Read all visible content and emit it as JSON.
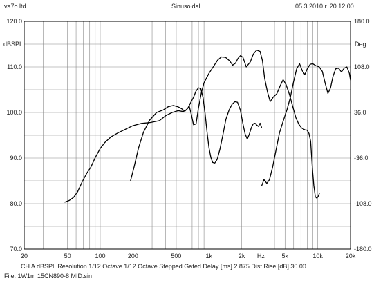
{
  "header": {
    "left": "va7o.ltd",
    "center": "Sinusoidal",
    "right": "05.3.2010 г. 20.12.00"
  },
  "footer": {
    "line1": "CH A   dBSPL   Resolution 1/12 Octave    1/12 Octave   Stepped    Gated    Delay [ms] 2.875    Dist Rise [dB] 30.00",
    "line2": "File: 1W1m 15CN890-8 MID.sin"
  },
  "chart_data": {
    "type": "line",
    "x_scale": "log",
    "xlim": [
      20,
      20000
    ],
    "ylim": [
      70,
      120
    ],
    "y2lim": [
      -180,
      180
    ],
    "ylabel": "dBSPL",
    "y2label": "Deg",
    "grid": true,
    "x_ticks": [
      {
        "v": 20,
        "t": "20"
      },
      {
        "v": 50,
        "t": "50"
      },
      {
        "v": 100,
        "t": "100"
      },
      {
        "v": 200,
        "t": "200"
      },
      {
        "v": 500,
        "t": "500"
      },
      {
        "v": 1000,
        "t": "1k"
      },
      {
        "v": 2000,
        "t": "2k"
      },
      {
        "v": 3000,
        "t": "Hz"
      },
      {
        "v": 5000,
        "t": "5k"
      },
      {
        "v": 10000,
        "t": "10k"
      },
      {
        "v": 20000,
        "t": "20k"
      }
    ],
    "y_ticks": [
      {
        "v": 120,
        "t": "120.0"
      },
      {
        "v": 110,
        "t": "110.0"
      },
      {
        "v": 100,
        "t": "100.0"
      },
      {
        "v": 90,
        "t": "90.0"
      },
      {
        "v": 80,
        "t": "80.0"
      },
      {
        "v": 70,
        "t": "70.0"
      }
    ],
    "y2_ticks": [
      {
        "v": 180,
        "t": "180.0"
      },
      {
        "v": 108,
        "t": "108.0"
      },
      {
        "v": 36,
        "t": "36.0"
      },
      {
        "v": -36,
        "t": "-36.0"
      },
      {
        "v": -108,
        "t": "-108.0"
      },
      {
        "v": -180,
        "t": "-180.0"
      }
    ],
    "series": [
      {
        "axis": "left",
        "color": "#000000",
        "points": [
          [
            47,
            80.3
          ],
          [
            52,
            80.7
          ],
          [
            57,
            81.4
          ],
          [
            62,
            82.6
          ],
          [
            68,
            84.7
          ],
          [
            75,
            86.6
          ],
          [
            82,
            88.0
          ],
          [
            90,
            90.1
          ],
          [
            100,
            92.1
          ],
          [
            110,
            93.4
          ],
          [
            125,
            94.6
          ],
          [
            145,
            95.5
          ],
          [
            170,
            96.3
          ],
          [
            200,
            97.1
          ],
          [
            240,
            97.6
          ],
          [
            290,
            97.8
          ],
          [
            350,
            98.2
          ],
          [
            400,
            99.3
          ],
          [
            460,
            100.0
          ],
          [
            520,
            100.4
          ],
          [
            580,
            100.2
          ],
          [
            620,
            100.6
          ],
          [
            660,
            101.3
          ],
          [
            690,
            99.4
          ],
          [
            720,
            97.3
          ],
          [
            760,
            97.5
          ],
          [
            800,
            101.0
          ],
          [
            850,
            104.3
          ],
          [
            900,
            106.5
          ],
          [
            950,
            107.6
          ],
          [
            1000,
            108.6
          ],
          [
            1100,
            110.1
          ],
          [
            1200,
            111.5
          ],
          [
            1300,
            112.2
          ],
          [
            1420,
            112.1
          ],
          [
            1550,
            111.3
          ],
          [
            1650,
            110.4
          ],
          [
            1750,
            110.8
          ],
          [
            1850,
            111.9
          ],
          [
            1950,
            112.5
          ],
          [
            2050,
            112.1
          ],
          [
            2200,
            110.0
          ],
          [
            2400,
            111.1
          ],
          [
            2550,
            112.8
          ],
          [
            2750,
            113.7
          ],
          [
            2950,
            113.4
          ],
          [
            3100,
            111.4
          ],
          [
            3250,
            107.5
          ],
          [
            3450,
            104.5
          ],
          [
            3650,
            102.4
          ],
          [
            3900,
            103.4
          ],
          [
            4200,
            104.1
          ],
          [
            4500,
            105.8
          ],
          [
            4800,
            107.2
          ],
          [
            5100,
            106.2
          ],
          [
            5500,
            103.9
          ],
          [
            5900,
            101.2
          ],
          [
            6300,
            98.8
          ],
          [
            6700,
            97.4
          ],
          [
            7100,
            96.6
          ],
          [
            7600,
            96.2
          ],
          [
            8000,
            96.1
          ],
          [
            8300,
            95.4
          ],
          [
            8600,
            93.7
          ],
          [
            8900,
            88.0
          ],
          [
            9200,
            84.0
          ],
          [
            9500,
            81.5
          ],
          [
            9800,
            81.2
          ],
          [
            10100,
            81.6
          ],
          [
            10400,
            82.4
          ]
        ]
      },
      {
        "axis": "right",
        "color": "#000000",
        "points": [
          [
            190,
            -72
          ],
          [
            205,
            -50
          ],
          [
            225,
            -20
          ],
          [
            250,
            5
          ],
          [
            285,
            24
          ],
          [
            330,
            36
          ],
          [
            380,
            40
          ],
          [
            420,
            45
          ],
          [
            470,
            47
          ],
          [
            520,
            45
          ],
          [
            560,
            42
          ],
          [
            600,
            38
          ],
          [
            640,
            43
          ],
          [
            680,
            52
          ],
          [
            720,
            60
          ],
          [
            760,
            70
          ],
          [
            800,
            75
          ],
          [
            840,
            74
          ],
          [
            880,
            60
          ],
          [
            920,
            35
          ],
          [
            960,
            5
          ],
          [
            1000,
            -20
          ],
          [
            1040,
            -35
          ],
          [
            1080,
            -43
          ],
          [
            1130,
            -44
          ],
          [
            1190,
            -38
          ],
          [
            1260,
            -22
          ],
          [
            1340,
            0
          ],
          [
            1430,
            25
          ],
          [
            1530,
            40
          ],
          [
            1630,
            49
          ],
          [
            1730,
            53
          ],
          [
            1830,
            52
          ],
          [
            1940,
            40
          ],
          [
            2050,
            18
          ],
          [
            2150,
            2
          ],
          [
            2250,
            -6
          ],
          [
            2350,
            2
          ],
          [
            2450,
            12
          ],
          [
            2550,
            18
          ],
          [
            2650,
            19
          ],
          [
            2750,
            16
          ],
          [
            2850,
            14
          ],
          [
            2950,
            19
          ],
          [
            3050,
            12
          ],
          [
            3050,
            -80
          ],
          [
            3200,
            -70
          ],
          [
            3400,
            -76
          ],
          [
            3600,
            -70
          ],
          [
            3850,
            -50
          ],
          [
            4150,
            -22
          ],
          [
            4450,
            4
          ],
          [
            4800,
            22
          ],
          [
            5200,
            40
          ],
          [
            5600,
            60
          ],
          [
            6000,
            85
          ],
          [
            6400,
            105
          ],
          [
            6800,
            113
          ],
          [
            7200,
            102
          ],
          [
            7600,
            96
          ],
          [
            8000,
            105
          ],
          [
            8500,
            112
          ],
          [
            9000,
            113
          ],
          [
            9600,
            110
          ],
          [
            10300,
            108
          ],
          [
            11000,
            101
          ],
          [
            11700,
            82
          ],
          [
            12400,
            66
          ],
          [
            13100,
            75
          ],
          [
            13800,
            93
          ],
          [
            14600,
            105
          ],
          [
            15500,
            106
          ],
          [
            16500,
            100
          ],
          [
            17500,
            106
          ],
          [
            18500,
            108
          ],
          [
            19500,
            98
          ],
          [
            20000,
            87
          ]
        ]
      }
    ]
  }
}
